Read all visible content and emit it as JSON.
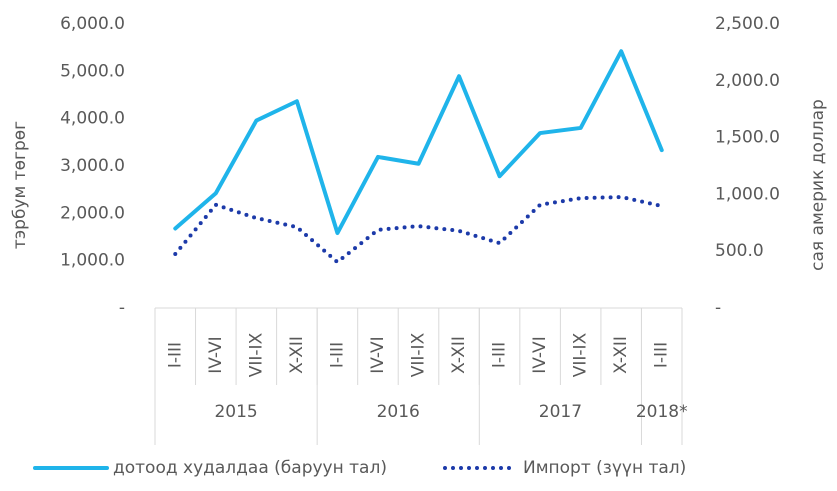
{
  "chart_data": {
    "type": "line",
    "y_label": "тэрбум төгрөг",
    "y2_label": "сая америк доллар",
    "categories": [
      "I-III",
      "IV-VI",
      "VII-IX",
      "X-XII",
      "I-III",
      "IV-VI",
      "VII-IX",
      "X-XII",
      "I-III",
      "IV-VI",
      "VII-IX",
      "X-XII",
      "I-III"
    ],
    "group_labels": [
      "2015",
      "2016",
      "2017",
      "2018*"
    ],
    "group_sizes": [
      4,
      4,
      4,
      1
    ],
    "series": [
      {
        "name": "дотоод худалдаа  (баруун тал)",
        "color": "#1fb4ea",
        "style": "solid",
        "axis": "y2",
        "values": [
          700,
          1010,
          1650,
          1820,
          660,
          1330,
          1270,
          2040,
          1160,
          1540,
          1585,
          2260,
          1390
        ]
      },
      {
        "name": "Импорт (зүүн тал)",
        "color": "#1c3aa9",
        "style": "dotted",
        "values": [
          1140,
          2180,
          1900,
          1710,
          970,
          1650,
          1730,
          1630,
          1370,
          2180,
          2320,
          2345,
          2155
        ]
      }
    ],
    "ylim": [
      0,
      6000
    ],
    "yticks": [
      {
        "value": 0,
        "label": "-"
      },
      {
        "value": 1000,
        "label": "1,000.0"
      },
      {
        "value": 2000,
        "label": "2,000.0"
      },
      {
        "value": 3000,
        "label": "3,000.0"
      },
      {
        "value": 4000,
        "label": "4,000.0"
      },
      {
        "value": 5000,
        "label": "5,000.0"
      },
      {
        "value": 6000,
        "label": "6,000.0"
      }
    ],
    "y2lim": [
      0,
      2500
    ],
    "y2ticks": [
      {
        "value": 0,
        "label": "-"
      },
      {
        "value": 500,
        "label": "500.0"
      },
      {
        "value": 1000,
        "label": "1,000.0"
      },
      {
        "value": 1500,
        "label": "1,500.0"
      },
      {
        "value": 2000,
        "label": "2,000.0"
      },
      {
        "value": 2500,
        "label": "2,500.0"
      }
    ],
    "legend": "bottom"
  }
}
